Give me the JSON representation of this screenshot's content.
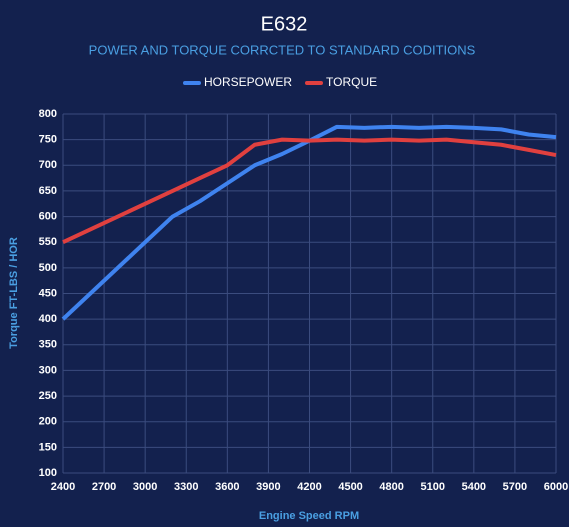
{
  "chart_data": {
    "type": "line",
    "title": "E632",
    "subtitle": "POWER AND TORQUE CORRCTED TO STANDARD CODITIONS",
    "x_label": "Engine Speed RPM",
    "y_label": "Torque FT-LBS / HOR",
    "x": [
      2400,
      3200,
      3400,
      3600,
      3800,
      4000,
      4200,
      4400,
      4600,
      4800,
      5000,
      5200,
      5400,
      5600,
      5800,
      6000
    ],
    "series": [
      {
        "name": "HORSEPOWER",
        "color": "#3f83ef",
        "values": [
          400,
          600,
          630,
          665,
          700,
          722,
          748,
          775,
          773,
          775,
          773,
          775,
          773,
          770,
          760,
          755
        ]
      },
      {
        "name": "TORQUE",
        "color": "#e0403f",
        "values": [
          550,
          650,
          675,
          700,
          740,
          750,
          748,
          750,
          748,
          750,
          748,
          750,
          745,
          740,
          730,
          720
        ]
      }
    ],
    "xlim": [
      2400,
      6000
    ],
    "xticks": [
      2400,
      2700,
      3000,
      3300,
      3600,
      3900,
      4200,
      4500,
      4800,
      5100,
      5400,
      5700,
      6000
    ],
    "ylim": [
      100,
      800
    ],
    "yticks": [
      100,
      150,
      200,
      250,
      300,
      350,
      400,
      450,
      500,
      550,
      600,
      650,
      700,
      750,
      800
    ],
    "grid": true,
    "legend": "top"
  }
}
